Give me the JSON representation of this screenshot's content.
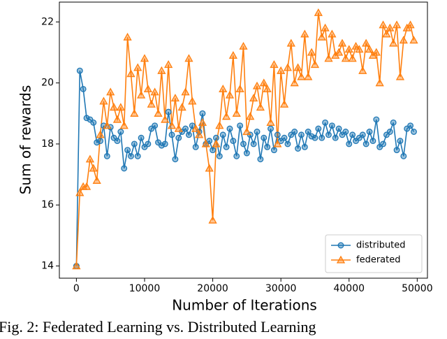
{
  "chart_data": {
    "type": "line",
    "xlabel": "Number of Iterations",
    "ylabel": "Sum of rewards",
    "caption": "Fig. 2: Federated Learning vs. Distributed Learning",
    "x": [
      0,
      500,
      1000,
      1500,
      2000,
      2500,
      3000,
      3500,
      4000,
      4500,
      5000,
      5500,
      6000,
      6500,
      7000,
      7500,
      8000,
      8500,
      9000,
      9500,
      10000,
      10500,
      11000,
      11500,
      12000,
      12500,
      13000,
      13500,
      14000,
      14500,
      15000,
      15500,
      16000,
      16500,
      17000,
      17500,
      18000,
      18500,
      19000,
      19500,
      20000,
      20500,
      21000,
      21500,
      22000,
      22500,
      23000,
      23500,
      24000,
      24500,
      25000,
      25500,
      26000,
      26500,
      27000,
      27500,
      28000,
      28500,
      29000,
      29500,
      30000,
      30500,
      31000,
      31500,
      32000,
      32500,
      33000,
      33500,
      34000,
      34500,
      35000,
      35500,
      36000,
      36500,
      37000,
      37500,
      38000,
      38500,
      39000,
      39500,
      40000,
      40500,
      41000,
      41500,
      42000,
      42500,
      43000,
      43500,
      44000,
      44500,
      45000,
      45500,
      46000,
      46500,
      47000,
      47500,
      48000,
      48500,
      49000,
      49500
    ],
    "series": [
      {
        "name": "distributed",
        "color": "#1f77b4",
        "marker": "circle",
        "values": [
          14,
          20.4,
          19.8,
          18.85,
          18.8,
          18.7,
          18.05,
          18.1,
          18.6,
          17.6,
          18.55,
          18.2,
          18.1,
          18.4,
          17.2,
          17.8,
          17.6,
          18.0,
          17.6,
          18.2,
          17.9,
          18.0,
          18.5,
          18.6,
          18.05,
          17.95,
          18.0,
          19.05,
          18.3,
          17.5,
          18.2,
          18.4,
          18.5,
          18.3,
          18.6,
          17.9,
          18.4,
          19.0,
          18.0,
          18.1,
          17.8,
          18.2,
          17.6,
          18.3,
          17.9,
          18.5,
          18.1,
          17.6,
          18.6,
          18.0,
          17.7,
          18.3,
          18.0,
          18.4,
          17.5,
          18.2,
          17.9,
          18.5,
          17.8,
          18.3,
          18.1,
          18.2,
          18.0,
          18.3,
          18.4,
          17.85,
          18.3,
          17.9,
          18.4,
          18.25,
          18.2,
          18.5,
          18.2,
          18.7,
          18.3,
          18.6,
          18.2,
          18.5,
          18.3,
          18.4,
          18.0,
          18.3,
          18.1,
          18.2,
          18.3,
          18.0,
          18.4,
          18.1,
          18.8,
          17.9,
          18.0,
          18.3,
          18.4,
          18.7,
          17.8,
          18.1,
          17.6,
          18.5,
          18.6,
          18.4
        ]
      },
      {
        "name": "federated",
        "color": "#ff7f0e",
        "marker": "triangle",
        "values": [
          14,
          16.4,
          16.6,
          16.6,
          17.5,
          17.2,
          16.8,
          18.3,
          19.4,
          18.6,
          19.7,
          19.2,
          18.8,
          19.2,
          18.6,
          21.5,
          20.3,
          19.0,
          20.5,
          19.6,
          20.8,
          19.8,
          19.3,
          19.7,
          19.0,
          20.4,
          18.8,
          20.6,
          18.6,
          19.5,
          18.5,
          19.2,
          19.7,
          20.8,
          19.4,
          18.5,
          18.3,
          18.7,
          18.0,
          17.2,
          15.5,
          18.0,
          18.6,
          19.8,
          18.9,
          19.6,
          20.9,
          19.0,
          19.8,
          21.2,
          18.4,
          18.9,
          19.5,
          19.9,
          19.2,
          20.0,
          19.8,
          18.7,
          20.6,
          18.0,
          20.4,
          19.3,
          20.5,
          21.3,
          20.0,
          20.5,
          20.2,
          21.6,
          20.2,
          21.0,
          20.6,
          22.3,
          21.5,
          21.8,
          20.8,
          21.6,
          20.9,
          21.0,
          21.3,
          20.8,
          21.1,
          20.8,
          21.2,
          21.1,
          20.4,
          21.3,
          21.1,
          20.9,
          21.0,
          20.0,
          21.9,
          21.6,
          21.8,
          21.3,
          21.9,
          20.2,
          21.4,
          21.8,
          21.9,
          21.4
        ]
      }
    ],
    "xlim": [
      -2500,
      51500
    ],
    "ylim": [
      13.6,
      22.65
    ],
    "xticks": [
      0,
      10000,
      20000,
      30000,
      40000,
      50000
    ],
    "yticks": [
      14,
      16,
      18,
      20,
      22
    ],
    "grid": false,
    "legend": "lower right"
  }
}
